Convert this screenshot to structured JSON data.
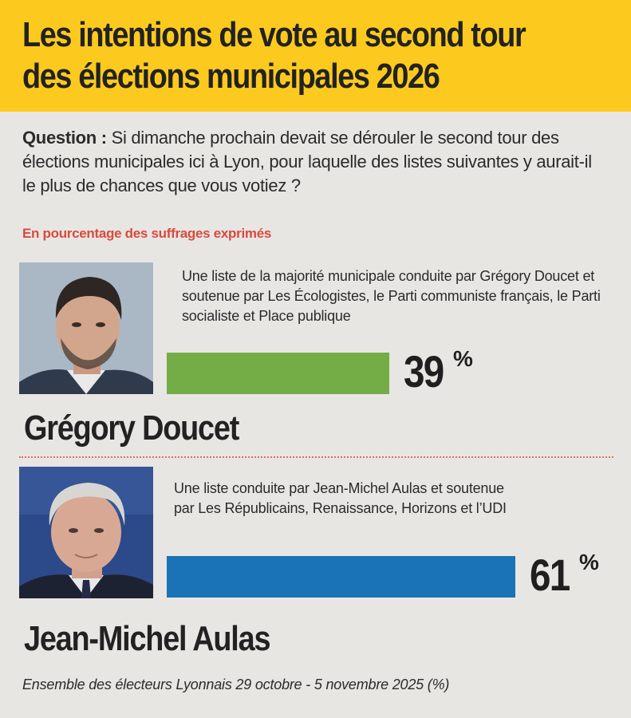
{
  "header": {
    "title_line1": "Les intentions de vote au second tour",
    "title_line2": "des élections municipales 2026",
    "background_color": "#fcca1e"
  },
  "question": {
    "label": "Question :",
    "text": "Si dimanche prochain devait se dérouler le second tour des élections municipales ici à Lyon, pour laquelle des listes suivantes y aurait-il le plus de chances que vous votiez ?"
  },
  "subtitle": "En pourcentage des suffrages exprimés",
  "chart_data": {
    "type": "bar",
    "orientation": "horizontal",
    "title": "Les intentions de vote au second tour des élections municipales 2026",
    "unit": "%",
    "xlim": [
      0,
      100
    ],
    "categories": [
      "Grégory Doucet",
      "Jean-Michel Aulas"
    ],
    "values": [
      39,
      61
    ],
    "colors": [
      "#74ac45",
      "#1a73b6"
    ],
    "descriptions": [
      "Une liste de la majorité municipale conduite par Grégory Doucet et soutenue par Les Écologistes, le Parti communiste français, le Parti socialiste et Place publique",
      "Une liste conduite par Jean-Michel Aulas et soutenue par Les Républicains, Renaissance, Horizons et l’UDI"
    ],
    "value_labels": [
      "39",
      "61"
    ],
    "percent_sign": "%"
  },
  "footer": "Ensemble des électeurs Lyonnais 29 octobre - 5 novembre 2025 (%)"
}
